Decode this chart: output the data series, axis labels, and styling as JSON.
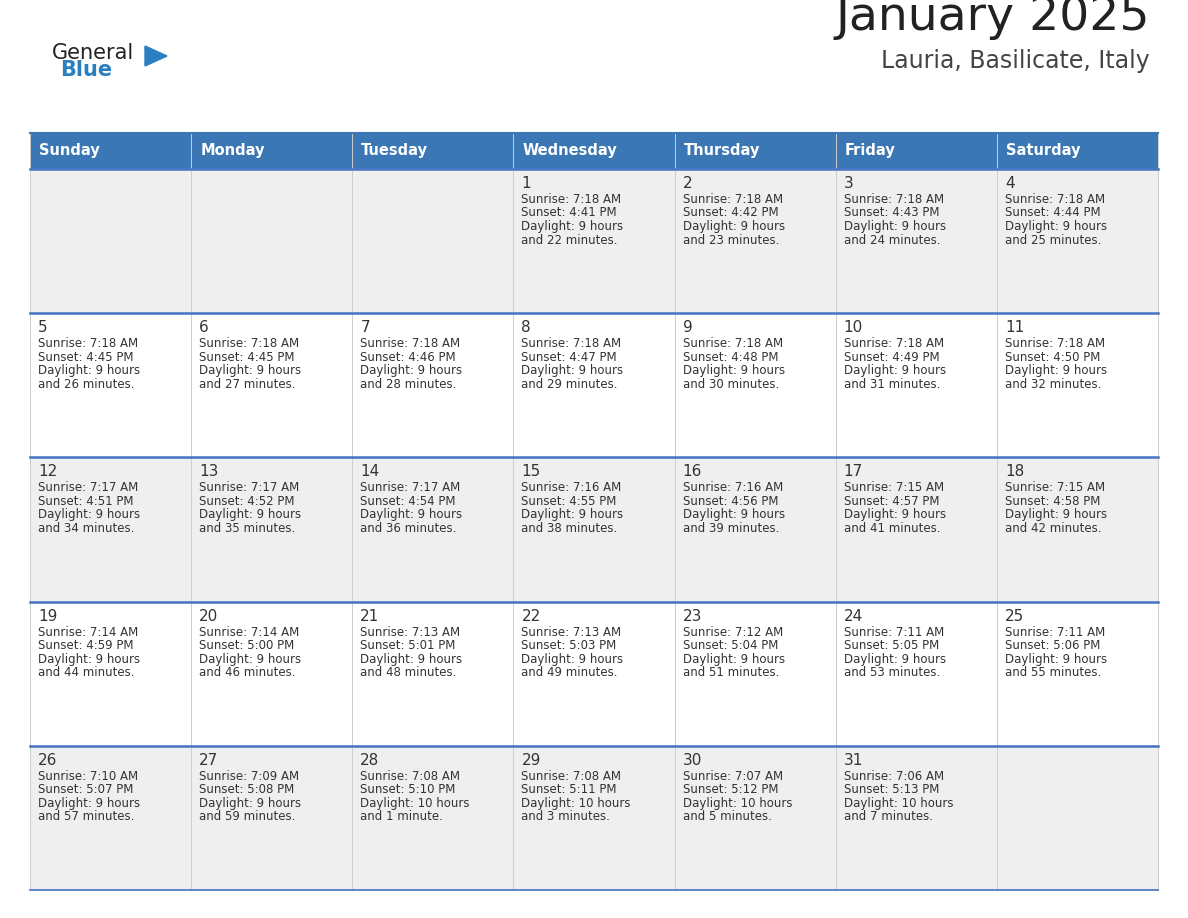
{
  "title": "January 2025",
  "subtitle": "Lauria, Basilicate, Italy",
  "days_of_week": [
    "Sunday",
    "Monday",
    "Tuesday",
    "Wednesday",
    "Thursday",
    "Friday",
    "Saturday"
  ],
  "header_bg_color": "#3a77b4",
  "header_text_color": "#FFFFFF",
  "cell_bg_even_color": "#EFEFEF",
  "cell_bg_odd_color": "#FFFFFF",
  "cell_text_color": "#333333",
  "row_sep_color": "#4472C4",
  "title_color": "#222222",
  "subtitle_color": "#444444",
  "logo_general_color": "#222222",
  "logo_blue_color": "#2a7fc1",
  "logo_triangle_color": "#2a7fc1",
  "weeks": [
    [
      {
        "day": null
      },
      {
        "day": null
      },
      {
        "day": null
      },
      {
        "day": 1,
        "sunrise": "7:18 AM",
        "sunset": "4:41 PM",
        "daylight": "9 hours and 22 minutes."
      },
      {
        "day": 2,
        "sunrise": "7:18 AM",
        "sunset": "4:42 PM",
        "daylight": "9 hours and 23 minutes."
      },
      {
        "day": 3,
        "sunrise": "7:18 AM",
        "sunset": "4:43 PM",
        "daylight": "9 hours and 24 minutes."
      },
      {
        "day": 4,
        "sunrise": "7:18 AM",
        "sunset": "4:44 PM",
        "daylight": "9 hours and 25 minutes."
      }
    ],
    [
      {
        "day": 5,
        "sunrise": "7:18 AM",
        "sunset": "4:45 PM",
        "daylight": "9 hours and 26 minutes."
      },
      {
        "day": 6,
        "sunrise": "7:18 AM",
        "sunset": "4:45 PM",
        "daylight": "9 hours and 27 minutes."
      },
      {
        "day": 7,
        "sunrise": "7:18 AM",
        "sunset": "4:46 PM",
        "daylight": "9 hours and 28 minutes."
      },
      {
        "day": 8,
        "sunrise": "7:18 AM",
        "sunset": "4:47 PM",
        "daylight": "9 hours and 29 minutes."
      },
      {
        "day": 9,
        "sunrise": "7:18 AM",
        "sunset": "4:48 PM",
        "daylight": "9 hours and 30 minutes."
      },
      {
        "day": 10,
        "sunrise": "7:18 AM",
        "sunset": "4:49 PM",
        "daylight": "9 hours and 31 minutes."
      },
      {
        "day": 11,
        "sunrise": "7:18 AM",
        "sunset": "4:50 PM",
        "daylight": "9 hours and 32 minutes."
      }
    ],
    [
      {
        "day": 12,
        "sunrise": "7:17 AM",
        "sunset": "4:51 PM",
        "daylight": "9 hours and 34 minutes."
      },
      {
        "day": 13,
        "sunrise": "7:17 AM",
        "sunset": "4:52 PM",
        "daylight": "9 hours and 35 minutes."
      },
      {
        "day": 14,
        "sunrise": "7:17 AM",
        "sunset": "4:54 PM",
        "daylight": "9 hours and 36 minutes."
      },
      {
        "day": 15,
        "sunrise": "7:16 AM",
        "sunset": "4:55 PM",
        "daylight": "9 hours and 38 minutes."
      },
      {
        "day": 16,
        "sunrise": "7:16 AM",
        "sunset": "4:56 PM",
        "daylight": "9 hours and 39 minutes."
      },
      {
        "day": 17,
        "sunrise": "7:15 AM",
        "sunset": "4:57 PM",
        "daylight": "9 hours and 41 minutes."
      },
      {
        "day": 18,
        "sunrise": "7:15 AM",
        "sunset": "4:58 PM",
        "daylight": "9 hours and 42 minutes."
      }
    ],
    [
      {
        "day": 19,
        "sunrise": "7:14 AM",
        "sunset": "4:59 PM",
        "daylight": "9 hours and 44 minutes."
      },
      {
        "day": 20,
        "sunrise": "7:14 AM",
        "sunset": "5:00 PM",
        "daylight": "9 hours and 46 minutes."
      },
      {
        "day": 21,
        "sunrise": "7:13 AM",
        "sunset": "5:01 PM",
        "daylight": "9 hours and 48 minutes."
      },
      {
        "day": 22,
        "sunrise": "7:13 AM",
        "sunset": "5:03 PM",
        "daylight": "9 hours and 49 minutes."
      },
      {
        "day": 23,
        "sunrise": "7:12 AM",
        "sunset": "5:04 PM",
        "daylight": "9 hours and 51 minutes."
      },
      {
        "day": 24,
        "sunrise": "7:11 AM",
        "sunset": "5:05 PM",
        "daylight": "9 hours and 53 minutes."
      },
      {
        "day": 25,
        "sunrise": "7:11 AM",
        "sunset": "5:06 PM",
        "daylight": "9 hours and 55 minutes."
      }
    ],
    [
      {
        "day": 26,
        "sunrise": "7:10 AM",
        "sunset": "5:07 PM",
        "daylight": "9 hours and 57 minutes."
      },
      {
        "day": 27,
        "sunrise": "7:09 AM",
        "sunset": "5:08 PM",
        "daylight": "9 hours and 59 minutes."
      },
      {
        "day": 28,
        "sunrise": "7:08 AM",
        "sunset": "5:10 PM",
        "daylight": "10 hours and 1 minute."
      },
      {
        "day": 29,
        "sunrise": "7:08 AM",
        "sunset": "5:11 PM",
        "daylight": "10 hours and 3 minutes."
      },
      {
        "day": 30,
        "sunrise": "7:07 AM",
        "sunset": "5:12 PM",
        "daylight": "10 hours and 5 minutes."
      },
      {
        "day": 31,
        "sunrise": "7:06 AM",
        "sunset": "5:13 PM",
        "daylight": "10 hours and 7 minutes."
      },
      {
        "day": null
      }
    ]
  ]
}
